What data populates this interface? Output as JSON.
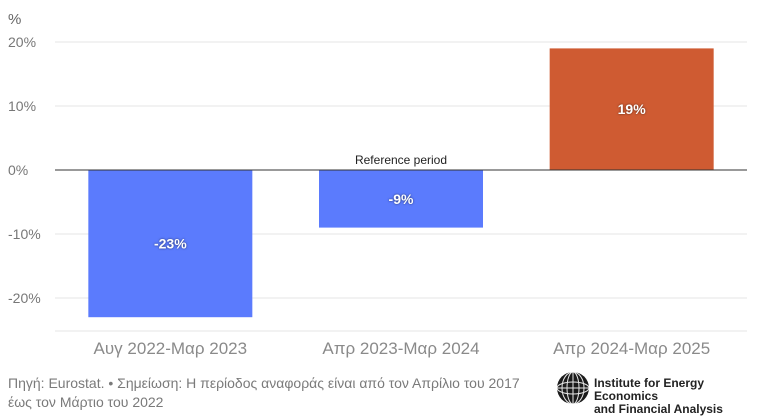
{
  "chart_data": {
    "type": "bar",
    "unit_label": "%",
    "categories": [
      "Αυγ 2022-Μαρ 2023",
      "Απρ 2023-Μαρ 2024",
      "Απρ 2024-Μαρ 2025"
    ],
    "values": [
      -23,
      -9,
      19
    ],
    "data_labels": [
      "-23%",
      "-9%",
      "19%"
    ],
    "bar_colors": [
      "#5b7bfd",
      "#5b7bfd",
      "#cf5b32"
    ],
    "y_ticks": [
      20,
      10,
      0,
      -10,
      -20
    ],
    "y_tick_labels": [
      "20%",
      "10%",
      "0%",
      "-10%",
      "-20%"
    ],
    "ylim": [
      -24,
      20
    ],
    "annotation": "Reference period",
    "grid": true
  },
  "footer": {
    "source": "Πηγή: Eurostat. • Σημείωση: Η περίοδος αναφοράς είναι από τον Απρίλιο του 2017 έως τον Μάρτιο του 2022"
  },
  "logo": {
    "line1": "Institute for Energy Economics",
    "line2": "and Financial Analysis"
  }
}
